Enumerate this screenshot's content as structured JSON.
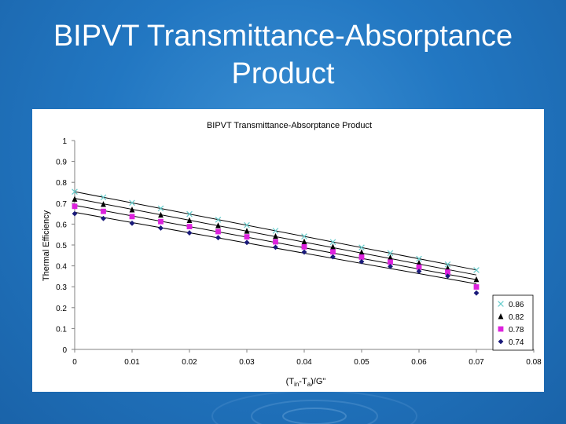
{
  "slide": {
    "title_line1": "BIPVT Transmittance-Absorptance",
    "title_line2": "Product"
  },
  "chart_data": {
    "type": "scatter",
    "title": "BIPVT Transmittance-Absorptance Product",
    "xlabel": "(T",
    "xlabel_sub1": "in",
    "xlabel_mid": "-T",
    "xlabel_sub2": "a",
    "xlabel_end": ")/G\"",
    "ylabel": "Thermal Efficiency",
    "xlim": [
      0,
      0.08
    ],
    "ylim": [
      0,
      1
    ],
    "xticks": [
      "0",
      "0.01",
      "0.02",
      "0.03",
      "0.04",
      "0.05",
      "0.06",
      "0.07",
      "0.08"
    ],
    "yticks": [
      "0",
      "0.1",
      "0.2",
      "0.3",
      "0.4",
      "0.5",
      "0.6",
      "0.7",
      "0.8",
      "0.9",
      "1"
    ],
    "grid": false,
    "legend_position": "bottom-right",
    "x": [
      0,
      0.005,
      0.01,
      0.015,
      0.02,
      0.025,
      0.03,
      0.035,
      0.04,
      0.045,
      0.05,
      0.055,
      0.06,
      0.065,
      0.07
    ],
    "series": [
      {
        "name": "0.86",
        "marker": "x",
        "color": "#66cccc",
        "values": [
          0.755,
          0.728,
          0.702,
          0.675,
          0.648,
          0.621,
          0.595,
          0.568,
          0.541,
          0.514,
          0.488,
          0.461,
          0.434,
          0.407,
          0.38
        ]
      },
      {
        "name": "0.82",
        "marker": "triangle",
        "color": "#000000",
        "values": [
          0.72,
          0.695,
          0.669,
          0.644,
          0.618,
          0.593,
          0.567,
          0.542,
          0.516,
          0.491,
          0.465,
          0.44,
          0.414,
          0.389,
          0.335
        ]
      },
      {
        "name": "0.78",
        "marker": "square",
        "color": "#dd22dd",
        "values": [
          0.685,
          0.661,
          0.636,
          0.612,
          0.588,
          0.564,
          0.539,
          0.515,
          0.491,
          0.467,
          0.442,
          0.418,
          0.394,
          0.37,
          0.299
        ]
      },
      {
        "name": "0.74",
        "marker": "diamond",
        "color": "#1a1a7a",
        "values": [
          0.65,
          0.627,
          0.604,
          0.581,
          0.558,
          0.535,
          0.512,
          0.489,
          0.466,
          0.443,
          0.42,
          0.397,
          0.374,
          0.351,
          0.27
        ]
      }
    ]
  }
}
